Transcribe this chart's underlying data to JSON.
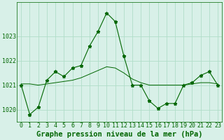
{
  "x": [
    0,
    1,
    2,
    3,
    4,
    5,
    6,
    7,
    8,
    9,
    10,
    11,
    12,
    13,
    14,
    15,
    16,
    17,
    18,
    19,
    20,
    21,
    22,
    23
  ],
  "y_main": [
    1021.0,
    1019.8,
    1020.1,
    1021.2,
    1021.55,
    1021.35,
    1021.7,
    1021.8,
    1022.6,
    1023.2,
    1023.95,
    1023.6,
    1022.2,
    1021.0,
    1021.0,
    1020.35,
    1020.05,
    1020.25,
    1020.25,
    1021.0,
    1021.1,
    1021.4,
    1021.55,
    1021.0
  ],
  "y_smooth": [
    1021.05,
    1021.05,
    1021.0,
    1021.05,
    1021.1,
    1021.15,
    1021.2,
    1021.3,
    1021.45,
    1021.6,
    1021.75,
    1021.7,
    1021.5,
    1021.25,
    1021.1,
    1021.0,
    1021.0,
    1021.0,
    1021.0,
    1021.0,
    1021.05,
    1021.1,
    1021.1,
    1021.05
  ],
  "title": "Graphe pression niveau de la mer (hPa)",
  "line_color": "#006600",
  "bg_color": "#d8f0e8",
  "grid_color": "#b0ddc8",
  "ylim": [
    1019.5,
    1024.4
  ],
  "yticks": [
    1020,
    1021,
    1022,
    1023
  ],
  "xticks": [
    0,
    1,
    2,
    3,
    4,
    5,
    6,
    7,
    8,
    9,
    10,
    11,
    12,
    13,
    14,
    15,
    16,
    17,
    18,
    19,
    20,
    21,
    22,
    23
  ],
  "title_fontsize": 7.5,
  "tick_fontsize": 6,
  "marker_size": 3.5,
  "figsize": [
    3.2,
    2.0
  ],
  "dpi": 100
}
